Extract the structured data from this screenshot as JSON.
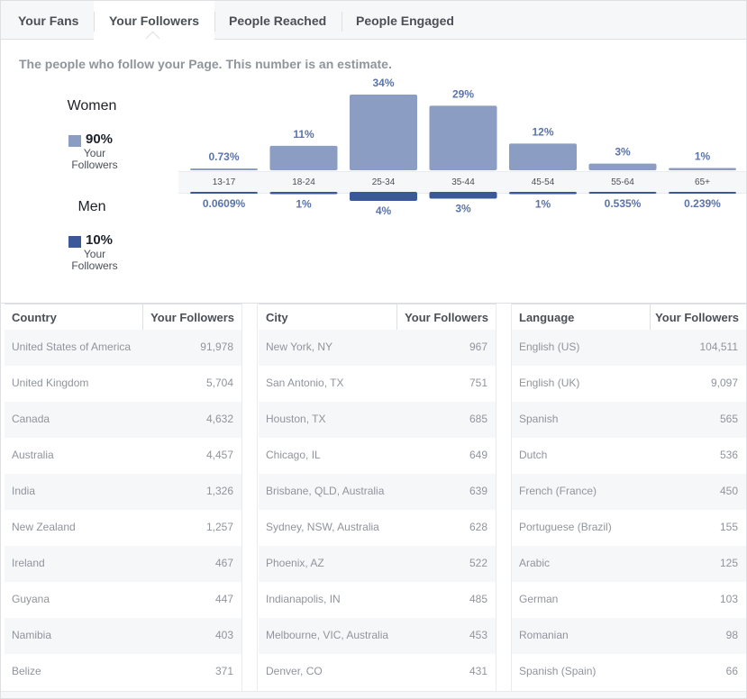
{
  "tabs": [
    {
      "label": "Your Fans",
      "active": false
    },
    {
      "label": "Your Followers",
      "active": true
    },
    {
      "label": "People Reached",
      "active": false
    },
    {
      "label": "People Engaged",
      "active": false
    }
  ],
  "subtitle": "The people who follow your Page. This number is an estimate.",
  "legend": {
    "women": {
      "heading": "Women",
      "percent": "90%",
      "sub1": "Your",
      "sub2": "Followers",
      "color": "#8b9dc3"
    },
    "men": {
      "heading": "Men",
      "percent": "10%",
      "sub1": "Your",
      "sub2": "Followers",
      "color": "#3b5998"
    }
  },
  "chart_data": {
    "type": "bar",
    "categories": [
      "13-17",
      "18-24",
      "25-34",
      "35-44",
      "45-54",
      "55-64",
      "65+"
    ],
    "series": [
      {
        "name": "Women",
        "values": [
          0.73,
          11,
          34,
          29,
          12,
          3,
          1
        ],
        "labels": [
          "0.73%",
          "11%",
          "34%",
          "29%",
          "12%",
          "3%",
          "1%"
        ],
        "color": "#8b9dc3"
      },
      {
        "name": "Men",
        "values": [
          0.0609,
          1,
          4,
          3,
          1,
          0.535,
          0.239
        ],
        "labels": [
          "0.0609%",
          "1%",
          "4%",
          "3%",
          "1%",
          "0.535%",
          "0.239%"
        ],
        "color": "#3b5998"
      }
    ],
    "ylim": [
      0,
      34
    ],
    "grid": false
  },
  "tables": [
    {
      "col1": "Country",
      "col2": "Your Followers",
      "rows": [
        [
          "United States of America",
          "91,978"
        ],
        [
          "United Kingdom",
          "5,704"
        ],
        [
          "Canada",
          "4,632"
        ],
        [
          "Australia",
          "4,457"
        ],
        [
          "India",
          "1,326"
        ],
        [
          "New Zealand",
          "1,257"
        ],
        [
          "Ireland",
          "467"
        ],
        [
          "Guyana",
          "447"
        ],
        [
          "Namibia",
          "403"
        ],
        [
          "Belize",
          "371"
        ]
      ]
    },
    {
      "col1": "City",
      "col2": "Your Followers",
      "rows": [
        [
          "New York, NY",
          "967"
        ],
        [
          "San Antonio, TX",
          "751"
        ],
        [
          "Houston, TX",
          "685"
        ],
        [
          "Chicago, IL",
          "649"
        ],
        [
          "Brisbane, QLD, Australia",
          "639"
        ],
        [
          "Sydney, NSW, Australia",
          "628"
        ],
        [
          "Phoenix, AZ",
          "522"
        ],
        [
          "Indianapolis, IN",
          "485"
        ],
        [
          "Melbourne, VIC, Australia",
          "453"
        ],
        [
          "Denver, CO",
          "431"
        ]
      ]
    },
    {
      "col1": "Language",
      "col2": "Your Followers",
      "rows": [
        [
          "English (US)",
          "104,511"
        ],
        [
          "English (UK)",
          "9,097"
        ],
        [
          "Spanish",
          "565"
        ],
        [
          "Dutch",
          "536"
        ],
        [
          "French (France)",
          "450"
        ],
        [
          "Portuguese (Brazil)",
          "155"
        ],
        [
          "Arabic",
          "125"
        ],
        [
          "German",
          "103"
        ],
        [
          "Romanian",
          "98"
        ],
        [
          "Spanish (Spain)",
          "66"
        ]
      ]
    }
  ]
}
